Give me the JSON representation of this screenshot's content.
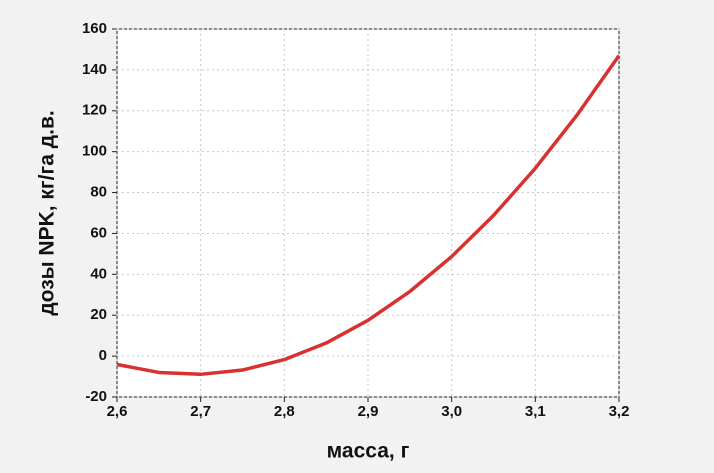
{
  "chart_data": {
    "type": "line",
    "xlabel": "масса, г",
    "ylabel": "дозы NPK, кг/га д.в.",
    "x": [
      2.6,
      2.65,
      2.7,
      2.75,
      2.8,
      2.85,
      2.9,
      2.95,
      3.0,
      3.05,
      3.1,
      3.15,
      3.2
    ],
    "series": [
      {
        "color": "#d93030",
        "values": [
          -4.1,
          -8.0,
          -8.9,
          -6.8,
          -1.7,
          6.4,
          17.5,
          31.6,
          48.7,
          68.8,
          91.9,
          118,
          147
        ]
      }
    ],
    "xlim": [
      2.6,
      3.2
    ],
    "xticks": [
      {
        "value": 2.6,
        "label": "2,6"
      },
      {
        "value": 2.7,
        "label": "2,7"
      },
      {
        "value": 2.8,
        "label": "2,8"
      },
      {
        "value": 2.9,
        "label": "2,9"
      },
      {
        "value": 3.0,
        "label": "3,0"
      },
      {
        "value": 3.1,
        "label": "3,1"
      },
      {
        "value": 3.2,
        "label": "3,2"
      }
    ],
    "ylim": [
      -20,
      160
    ],
    "yticks": [
      -20,
      0,
      20,
      40,
      60,
      80,
      100,
      120,
      140,
      160
    ],
    "grid": true
  }
}
